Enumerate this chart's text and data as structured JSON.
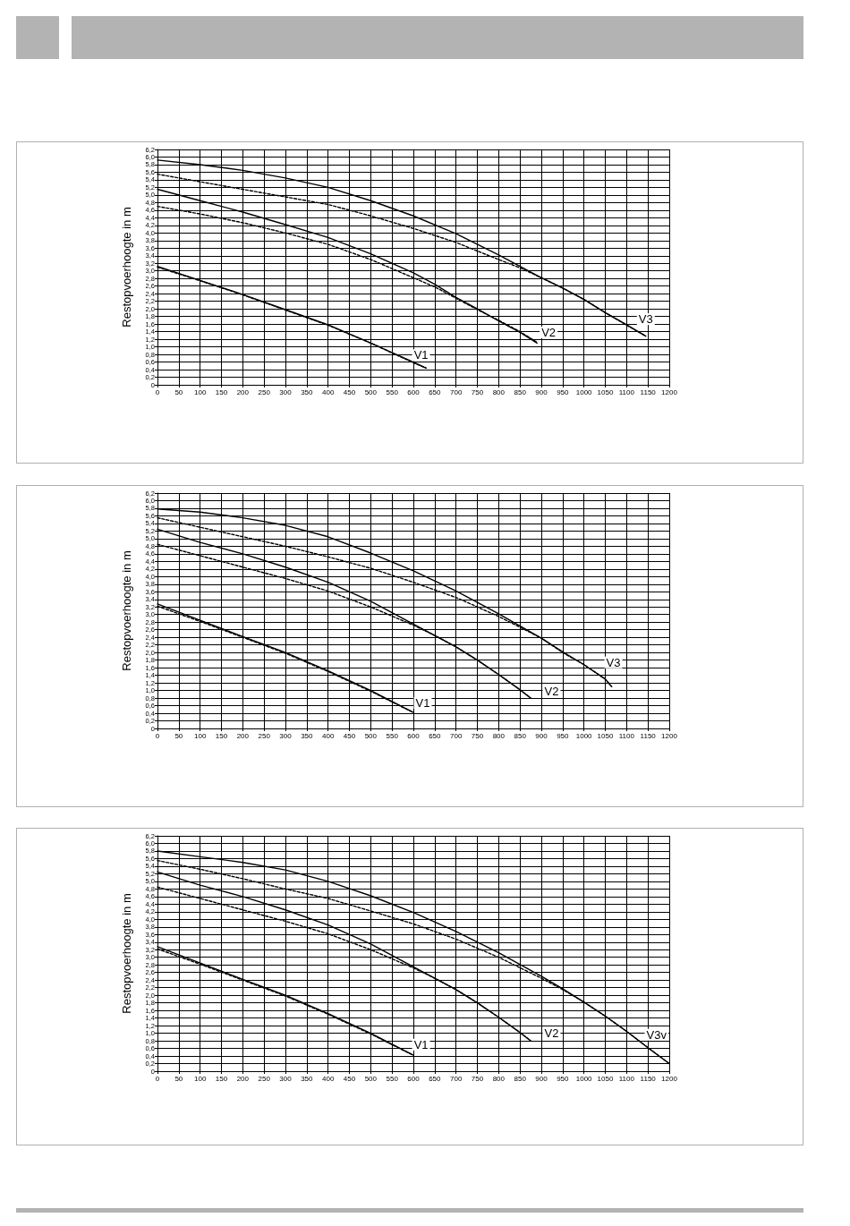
{
  "chart_data": [
    {
      "type": "line",
      "ylabel": "Restopvoerhoogte in m",
      "xlim": [
        0,
        1200
      ],
      "xticks": [
        0,
        50,
        100,
        150,
        200,
        250,
        300,
        350,
        400,
        450,
        500,
        550,
        600,
        650,
        700,
        750,
        800,
        850,
        900,
        950,
        1000,
        1050,
        1100,
        1150,
        1200
      ],
      "ylim": [
        0,
        6.2
      ],
      "yticks": [
        {
          "value": 0,
          "label": "0"
        },
        {
          "value": 0.2,
          "label": "0,2"
        },
        {
          "value": 0.4,
          "label": "0,4"
        },
        {
          "value": 0.6,
          "label": "0,6"
        },
        {
          "value": 0.8,
          "label": "0,8"
        },
        {
          "value": 1,
          "label": "1,0"
        },
        {
          "value": 1.2,
          "label": "1,2"
        },
        {
          "value": 1.4,
          "label": "1,4"
        },
        {
          "value": 1.6,
          "label": "1,6"
        },
        {
          "value": 1.8,
          "label": "1,8"
        },
        {
          "value": 2,
          "label": "2,0"
        },
        {
          "value": 2.2,
          "label": "2,2"
        },
        {
          "value": 2.4,
          "label": "2,4"
        },
        {
          "value": 2.6,
          "label": "2,6"
        },
        {
          "value": 2.8,
          "label": "2,8"
        },
        {
          "value": 3,
          "label": "3,0"
        },
        {
          "value": 3.2,
          "label": "3,2"
        },
        {
          "value": 3.4,
          "label": "3,4"
        },
        {
          "value": 3.6,
          "label": "3,6"
        },
        {
          "value": 3.8,
          "label": "3,8"
        },
        {
          "value": 4,
          "label": "4,0"
        },
        {
          "value": 4.2,
          "label": "4,2"
        },
        {
          "value": 4.4,
          "label": "4,4"
        },
        {
          "value": 4.6,
          "label": "4,6"
        },
        {
          "value": 4.8,
          "label": "4,8"
        },
        {
          "value": 5,
          "label": "5,0"
        },
        {
          "value": 5.2,
          "label": "5,2"
        },
        {
          "value": 5.4,
          "label": "5,4"
        },
        {
          "value": 5.6,
          "label": "5,6"
        },
        {
          "value": 5.8,
          "label": "5,8"
        },
        {
          "value": 6,
          "label": "6,0"
        },
        {
          "value": 6.2,
          "label": "6,2"
        }
      ],
      "grid": true,
      "marker": "none",
      "series": [
        {
          "color": "#000000",
          "line_style": "solid",
          "x": [
            0,
            100,
            200,
            300,
            400,
            500,
            600,
            700,
            800,
            900,
            950,
            1000,
            1050,
            1100,
            1145
          ],
          "values": [
            5.92,
            5.8,
            5.65,
            5.45,
            5.2,
            4.85,
            4.45,
            3.98,
            3.42,
            2.82,
            2.55,
            2.25,
            1.9,
            1.58,
            1.28
          ]
        },
        {
          "color": "#000000",
          "line_style": "dashed",
          "x": [
            0,
            100,
            200,
            300,
            400,
            500,
            600,
            700,
            800,
            850,
            900,
            950,
            1000,
            1050,
            1100,
            1145
          ],
          "values": [
            5.55,
            5.35,
            5.15,
            4.95,
            4.75,
            4.45,
            4.12,
            3.75,
            3.3,
            3.08,
            2.82,
            2.55,
            2.25,
            1.9,
            1.57,
            1.28
          ]
        },
        {
          "color": "#000000",
          "line_style": "solid",
          "x": [
            0,
            100,
            200,
            300,
            400,
            500,
            600,
            650,
            700,
            750,
            800,
            850,
            890
          ],
          "values": [
            5.15,
            4.85,
            4.55,
            4.22,
            3.88,
            3.45,
            2.95,
            2.65,
            2.3,
            2.0,
            1.68,
            1.38,
            1.1
          ]
        },
        {
          "color": "#000000",
          "line_style": "dashed",
          "x": [
            0,
            100,
            200,
            300,
            400,
            500,
            600,
            650,
            700,
            750,
            800,
            850,
            890
          ],
          "values": [
            4.7,
            4.5,
            4.27,
            4.0,
            3.7,
            3.3,
            2.82,
            2.58,
            2.28,
            1.98,
            1.7,
            1.4,
            1.12
          ]
        },
        {
          "color": "#000000",
          "line_style": "solid",
          "x": [
            0,
            100,
            200,
            300,
            400,
            500,
            600,
            630
          ],
          "values": [
            3.12,
            2.75,
            2.38,
            1.98,
            1.58,
            1.1,
            0.6,
            0.44
          ]
        },
        {
          "color": "#000000",
          "line_style": "dashed",
          "x": [
            0,
            100,
            200,
            300,
            400,
            500,
            600,
            630
          ],
          "values": [
            3.1,
            2.74,
            2.37,
            1.97,
            1.57,
            1.1,
            0.58,
            0.44
          ]
        }
      ],
      "annotations": [
        {
          "text": "V1",
          "x": 618,
          "y": 0.78
        },
        {
          "text": "V2",
          "x": 917,
          "y": 1.38
        },
        {
          "text": "V3",
          "x": 1145,
          "y": 1.73
        }
      ]
    },
    {
      "type": "line",
      "ylabel": "Restopvoerhoogte in m",
      "xlim": [
        0,
        1200
      ],
      "xticks": [
        0,
        50,
        100,
        150,
        200,
        250,
        300,
        350,
        400,
        450,
        500,
        550,
        600,
        650,
        700,
        750,
        800,
        850,
        900,
        950,
        1000,
        1050,
        1100,
        1150,
        1200
      ],
      "ylim": [
        0,
        6.2
      ],
      "yticks": [
        {
          "value": 0,
          "label": "0"
        },
        {
          "value": 0.2,
          "label": "0,2"
        },
        {
          "value": 0.4,
          "label": "0,4"
        },
        {
          "value": 0.6,
          "label": "0,6"
        },
        {
          "value": 0.8,
          "label": "0,8"
        },
        {
          "value": 1,
          "label": "1,0"
        },
        {
          "value": 1.2,
          "label": "1,2"
        },
        {
          "value": 1.4,
          "label": "1,4"
        },
        {
          "value": 1.6,
          "label": "1,6"
        },
        {
          "value": 1.8,
          "label": "1,8"
        },
        {
          "value": 2,
          "label": "2,0"
        },
        {
          "value": 2.2,
          "label": "2,2"
        },
        {
          "value": 2.4,
          "label": "2,4"
        },
        {
          "value": 2.6,
          "label": "2,6"
        },
        {
          "value": 2.8,
          "label": "2,8"
        },
        {
          "value": 3,
          "label": "3,0"
        },
        {
          "value": 3.2,
          "label": "3,2"
        },
        {
          "value": 3.4,
          "label": "3,4"
        },
        {
          "value": 3.6,
          "label": "3,6"
        },
        {
          "value": 3.8,
          "label": "3,8"
        },
        {
          "value": 4,
          "label": "4,0"
        },
        {
          "value": 4.2,
          "label": "4,2"
        },
        {
          "value": 4.4,
          "label": "4,4"
        },
        {
          "value": 4.6,
          "label": "4,6"
        },
        {
          "value": 4.8,
          "label": "4,8"
        },
        {
          "value": 5,
          "label": "5,0"
        },
        {
          "value": 5.2,
          "label": "5,2"
        },
        {
          "value": 5.4,
          "label": "5,4"
        },
        {
          "value": 5.6,
          "label": "5,6"
        },
        {
          "value": 5.8,
          "label": "5,8"
        },
        {
          "value": 6,
          "label": "6,0"
        },
        {
          "value": 6.2,
          "label": "6,2"
        }
      ],
      "grid": true,
      "marker": "none",
      "series": [
        {
          "color": "#000000",
          "line_style": "solid",
          "x": [
            0,
            100,
            200,
            300,
            400,
            500,
            600,
            700,
            800,
            900,
            950,
            1000,
            1050,
            1065
          ],
          "values": [
            5.78,
            5.7,
            5.55,
            5.35,
            5.05,
            4.62,
            4.15,
            3.62,
            3.02,
            2.38,
            2.02,
            1.68,
            1.3,
            1.1
          ]
        },
        {
          "color": "#000000",
          "line_style": "dashed",
          "x": [
            0,
            100,
            200,
            300,
            400,
            500,
            600,
            700,
            800,
            900,
            950,
            1000,
            1050,
            1065
          ],
          "values": [
            5.55,
            5.3,
            5.05,
            4.8,
            4.52,
            4.22,
            3.85,
            3.45,
            2.95,
            2.38,
            2.0,
            1.68,
            1.3,
            1.1
          ]
        },
        {
          "color": "#000000",
          "line_style": "solid",
          "x": [
            0,
            100,
            200,
            300,
            400,
            500,
            600,
            650,
            700,
            750,
            800,
            850,
            875
          ],
          "values": [
            5.25,
            4.9,
            4.6,
            4.25,
            3.85,
            3.35,
            2.75,
            2.45,
            2.15,
            1.8,
            1.42,
            1.02,
            0.8
          ]
        },
        {
          "color": "#000000",
          "line_style": "dashed",
          "x": [
            0,
            100,
            200,
            300,
            400,
            500,
            600,
            650,
            700,
            750,
            800,
            850,
            875
          ],
          "values": [
            4.85,
            4.55,
            4.25,
            3.95,
            3.62,
            3.2,
            2.72,
            2.45,
            2.15,
            1.8,
            1.42,
            1.02,
            0.8
          ]
        },
        {
          "color": "#000000",
          "line_style": "solid",
          "x": [
            0,
            100,
            200,
            300,
            400,
            500,
            600
          ],
          "values": [
            3.28,
            2.85,
            2.42,
            2.0,
            1.52,
            1.0,
            0.42
          ]
        },
        {
          "color": "#000000",
          "line_style": "dashed",
          "x": [
            0,
            100,
            200,
            300,
            400,
            500,
            600
          ],
          "values": [
            3.22,
            2.82,
            2.4,
            1.98,
            1.5,
            0.98,
            0.42
          ]
        }
      ],
      "annotations": [
        {
          "text": "V1",
          "x": 622,
          "y": 0.67
        },
        {
          "text": "V2",
          "x": 924,
          "y": 0.99
        },
        {
          "text": "V3",
          "x": 1069,
          "y": 1.74
        }
      ]
    },
    {
      "type": "line",
      "ylabel": "Restopvoerhoogte in m",
      "xlim": [
        0,
        1200
      ],
      "xticks": [
        0,
        50,
        100,
        150,
        200,
        250,
        300,
        350,
        400,
        450,
        500,
        550,
        600,
        650,
        700,
        750,
        800,
        850,
        900,
        950,
        1000,
        1050,
        1100,
        1150,
        1200
      ],
      "ylim": [
        0,
        6.2
      ],
      "yticks": [
        {
          "value": 0,
          "label": "0"
        },
        {
          "value": 0.2,
          "label": "0,2"
        },
        {
          "value": 0.4,
          "label": "0,4"
        },
        {
          "value": 0.6,
          "label": "0,6"
        },
        {
          "value": 0.8,
          "label": "0,8"
        },
        {
          "value": 1,
          "label": "1,0"
        },
        {
          "value": 1.2,
          "label": "1,2"
        },
        {
          "value": 1.4,
          "label": "1,4"
        },
        {
          "value": 1.6,
          "label": "1,6"
        },
        {
          "value": 1.8,
          "label": "1,8"
        },
        {
          "value": 2,
          "label": "2,0"
        },
        {
          "value": 2.2,
          "label": "2,2"
        },
        {
          "value": 2.4,
          "label": "2,4"
        },
        {
          "value": 2.6,
          "label": "2,6"
        },
        {
          "value": 2.8,
          "label": "2,8"
        },
        {
          "value": 3,
          "label": "3,0"
        },
        {
          "value": 3.2,
          "label": "3,2"
        },
        {
          "value": 3.4,
          "label": "3,4"
        },
        {
          "value": 3.6,
          "label": "3,6"
        },
        {
          "value": 3.8,
          "label": "3,8"
        },
        {
          "value": 4,
          "label": "4,0"
        },
        {
          "value": 4.2,
          "label": "4,2"
        },
        {
          "value": 4.4,
          "label": "4,4"
        },
        {
          "value": 4.6,
          "label": "4,6"
        },
        {
          "value": 4.8,
          "label": "4,8"
        },
        {
          "value": 5,
          "label": "5,0"
        },
        {
          "value": 5.2,
          "label": "5,2"
        },
        {
          "value": 5.4,
          "label": "5,4"
        },
        {
          "value": 5.6,
          "label": "5,6"
        },
        {
          "value": 5.8,
          "label": "5,8"
        },
        {
          "value": 6,
          "label": "6,0"
        },
        {
          "value": 6.2,
          "label": "6,2"
        }
      ],
      "grid": true,
      "marker": "none",
      "series": [
        {
          "color": "#000000",
          "line_style": "solid",
          "x": [
            0,
            100,
            200,
            300,
            400,
            500,
            600,
            700,
            800,
            900,
            950,
            1000,
            1050,
            1100,
            1150,
            1200
          ],
          "values": [
            5.8,
            5.65,
            5.5,
            5.3,
            5.0,
            4.62,
            4.18,
            3.68,
            3.12,
            2.5,
            2.17,
            1.82,
            1.45,
            1.05,
            0.62,
            0.2
          ]
        },
        {
          "color": "#000000",
          "line_style": "dashed",
          "x": [
            0,
            100,
            200,
            300,
            400,
            500,
            600,
            700,
            800,
            900,
            950,
            1000,
            1050,
            1100,
            1150,
            1200
          ],
          "values": [
            5.55,
            5.32,
            5.07,
            4.8,
            4.55,
            4.22,
            3.88,
            3.48,
            3.0,
            2.45,
            2.15,
            1.82,
            1.45,
            1.05,
            0.62,
            0.2
          ]
        },
        {
          "color": "#000000",
          "line_style": "solid",
          "x": [
            0,
            100,
            200,
            300,
            400,
            500,
            600,
            650,
            700,
            750,
            800,
            850,
            875
          ],
          "values": [
            5.25,
            4.9,
            4.6,
            4.25,
            3.85,
            3.35,
            2.75,
            2.45,
            2.15,
            1.8,
            1.42,
            1.02,
            0.8
          ]
        },
        {
          "color": "#000000",
          "line_style": "dashed",
          "x": [
            0,
            100,
            200,
            300,
            400,
            500,
            600,
            650,
            700,
            750,
            800,
            850,
            875
          ],
          "values": [
            4.85,
            4.55,
            4.25,
            3.95,
            3.62,
            3.2,
            2.72,
            2.45,
            2.15,
            1.8,
            1.42,
            1.02,
            0.8
          ]
        },
        {
          "color": "#000000",
          "line_style": "solid",
          "x": [
            0,
            100,
            200,
            300,
            400,
            500,
            600
          ],
          "values": [
            3.28,
            2.85,
            2.42,
            2.0,
            1.52,
            1.0,
            0.42
          ]
        },
        {
          "color": "#000000",
          "line_style": "dashed",
          "x": [
            0,
            100,
            200,
            300,
            400,
            500,
            600
          ],
          "values": [
            3.22,
            2.82,
            2.4,
            1.98,
            1.5,
            0.98,
            0.42
          ]
        }
      ],
      "annotations": [
        {
          "text": "V1",
          "x": 618,
          "y": 0.7
        },
        {
          "text": "V2",
          "x": 924,
          "y": 1.0
        },
        {
          "text": "V3v",
          "x": 1170,
          "y": 0.96
        }
      ]
    }
  ]
}
